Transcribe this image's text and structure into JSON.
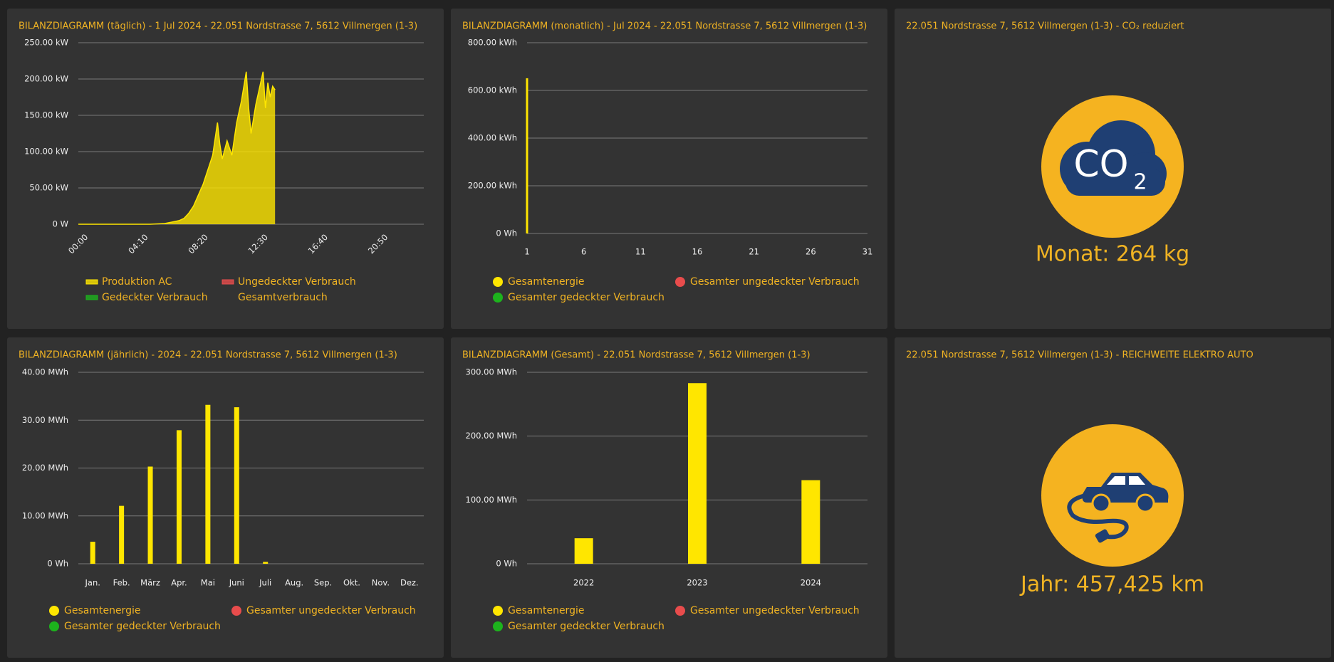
{
  "chart_data": [
    {
      "type": "area",
      "title": "BILANZDIAGRAMM (täglich) - 1 Jul 2024 - 22.051 Nordstrasse 7, 5612 Villmergen (1-3)",
      "x": [
        "00:00",
        "05:00",
        "06:00",
        "06:30",
        "07:00",
        "07:20",
        "07:40",
        "08:00",
        "08:20",
        "08:40",
        "09:00",
        "09:20",
        "09:40",
        "09:50",
        "10:00",
        "10:20",
        "10:40",
        "11:00",
        "11:20",
        "11:40",
        "11:50",
        "12:00",
        "12:20",
        "12:40",
        "12:50",
        "13:00",
        "13:10",
        "13:20",
        "13:30",
        "13:40"
      ],
      "xlim": [
        "00:00",
        "24:00"
      ],
      "xticks": [
        "00:00",
        "04:10",
        "08:20",
        "12:30",
        "16:40",
        "20:50"
      ],
      "ylim": [
        0,
        250
      ],
      "yticks": [
        {
          "value": 0,
          "label": "0 W"
        },
        {
          "value": 50,
          "label": "50.00 kW"
        },
        {
          "value": 100,
          "label": "100.00 kW"
        },
        {
          "value": 150,
          "label": "150.00 kW"
        },
        {
          "value": 200,
          "label": "200.00 kW"
        },
        {
          "value": 250,
          "label": "250.00 kW"
        }
      ],
      "grid": true,
      "legend_marker": "rect",
      "series": [
        {
          "name": "Produktion AC",
          "color": "#ffe600",
          "values": [
            0,
            0,
            1,
            3,
            5,
            8,
            15,
            25,
            40,
            55,
            75,
            95,
            140,
            110,
            90,
            115,
            95,
            140,
            170,
            210,
            160,
            125,
            165,
            195,
            210,
            160,
            195,
            175,
            190,
            185
          ]
        },
        {
          "name": "Ungedeckter Verbrauch",
          "color": "#e84c4c"
        },
        {
          "name": "Gedeckter Verbrauch",
          "color": "#1db31d"
        },
        {
          "name": "Gesamtverbrauch"
        }
      ]
    },
    {
      "type": "bar",
      "title": "BILANZDIAGRAMM (monatlich) - Jul 2024 - 22.051 Nordstrasse 7, 5612 Villmergen (1-3)",
      "x": [
        1
      ],
      "xlim": [
        1,
        31
      ],
      "xticks": [
        1,
        6,
        11,
        16,
        21,
        26,
        31
      ],
      "ylim": [
        0,
        800
      ],
      "yticks": [
        {
          "value": 0,
          "label": "0 Wh"
        },
        {
          "value": 200,
          "label": "200.00 kWh"
        },
        {
          "value": 400,
          "label": "400.00 kWh"
        },
        {
          "value": 600,
          "label": "600.00 kWh"
        },
        {
          "value": 800,
          "label": "800.00 kWh"
        }
      ],
      "grid": true,
      "legend_marker": "circle",
      "series": [
        {
          "name": "Gesamtenergie",
          "color": "#ffe600",
          "values": [
            651
          ]
        },
        {
          "name": "Gesamter ungedeckter Verbrauch",
          "color": "#e84c4c"
        },
        {
          "name": "Gesamter gedeckter Verbrauch",
          "color": "#1db31d"
        }
      ]
    },
    {
      "type": "bar",
      "title": "BILANZDIAGRAMM (jährlich) - 2024 - 22.051 Nordstrasse 7, 5612 Villmergen (1-3)",
      "categories": [
        "Jan.",
        "Feb.",
        "März",
        "Apr.",
        "Mai",
        "Juni",
        "Juli",
        "Aug.",
        "Sep.",
        "Okt.",
        "Nov.",
        "Dez."
      ],
      "ylim": [
        0,
        40
      ],
      "yticks": [
        {
          "value": 0,
          "label": "0 Wh"
        },
        {
          "value": 10,
          "label": "10.00 MWh"
        },
        {
          "value": 20,
          "label": "20.00 MWh"
        },
        {
          "value": 30,
          "label": "30.00 MWh"
        },
        {
          "value": 40,
          "label": "40.00 MWh"
        }
      ],
      "grid": true,
      "legend_marker": "circle",
      "series": [
        {
          "name": "Gesamtenergie",
          "color": "#ffe600",
          "values": [
            4.6,
            12.1,
            20.3,
            27.9,
            33.2,
            32.7,
            0.4,
            null,
            null,
            null,
            null,
            null
          ]
        },
        {
          "name": "Gesamter ungedeckter Verbrauch",
          "color": "#e84c4c"
        },
        {
          "name": "Gesamter gedeckter Verbrauch",
          "color": "#1db31d"
        }
      ]
    },
    {
      "type": "bar",
      "title": "BILANZDIAGRAMM (Gesamt) - 22.051 Nordstrasse 7, 5612 Villmergen (1-3)",
      "categories": [
        "2022",
        "2023",
        "2024"
      ],
      "ylim": [
        0,
        300
      ],
      "yticks": [
        {
          "value": 0,
          "label": "0 Wh"
        },
        {
          "value": 100,
          "label": "100.00 MWh"
        },
        {
          "value": 200,
          "label": "200.00 MWh"
        },
        {
          "value": 300,
          "label": "300.00 MWh"
        }
      ],
      "grid": true,
      "legend_marker": "circle",
      "series": [
        {
          "name": "Gesamtenergie",
          "color": "#ffe600",
          "values": [
            40,
            283,
            131
          ]
        },
        {
          "name": "Gesamter ungedeckter Verbrauch",
          "color": "#e84c4c"
        },
        {
          "name": "Gesamter gedeckter Verbrauch",
          "color": "#1db31d"
        }
      ]
    }
  ],
  "tiles": [
    {
      "title": "22.051 Nordstrasse 7, 5612 Villmergen (1-3) - CO₂ reduziert",
      "icon": {
        "main": "CO",
        "sub": "2"
      },
      "value": "Monat: 264 kg"
    },
    {
      "title": "22.051 Nordstrasse 7, 5612 Villmergen (1-3) - REICHWEITE ELEKTRO AUTO",
      "value": "Jahr: 457,425 km"
    }
  ]
}
